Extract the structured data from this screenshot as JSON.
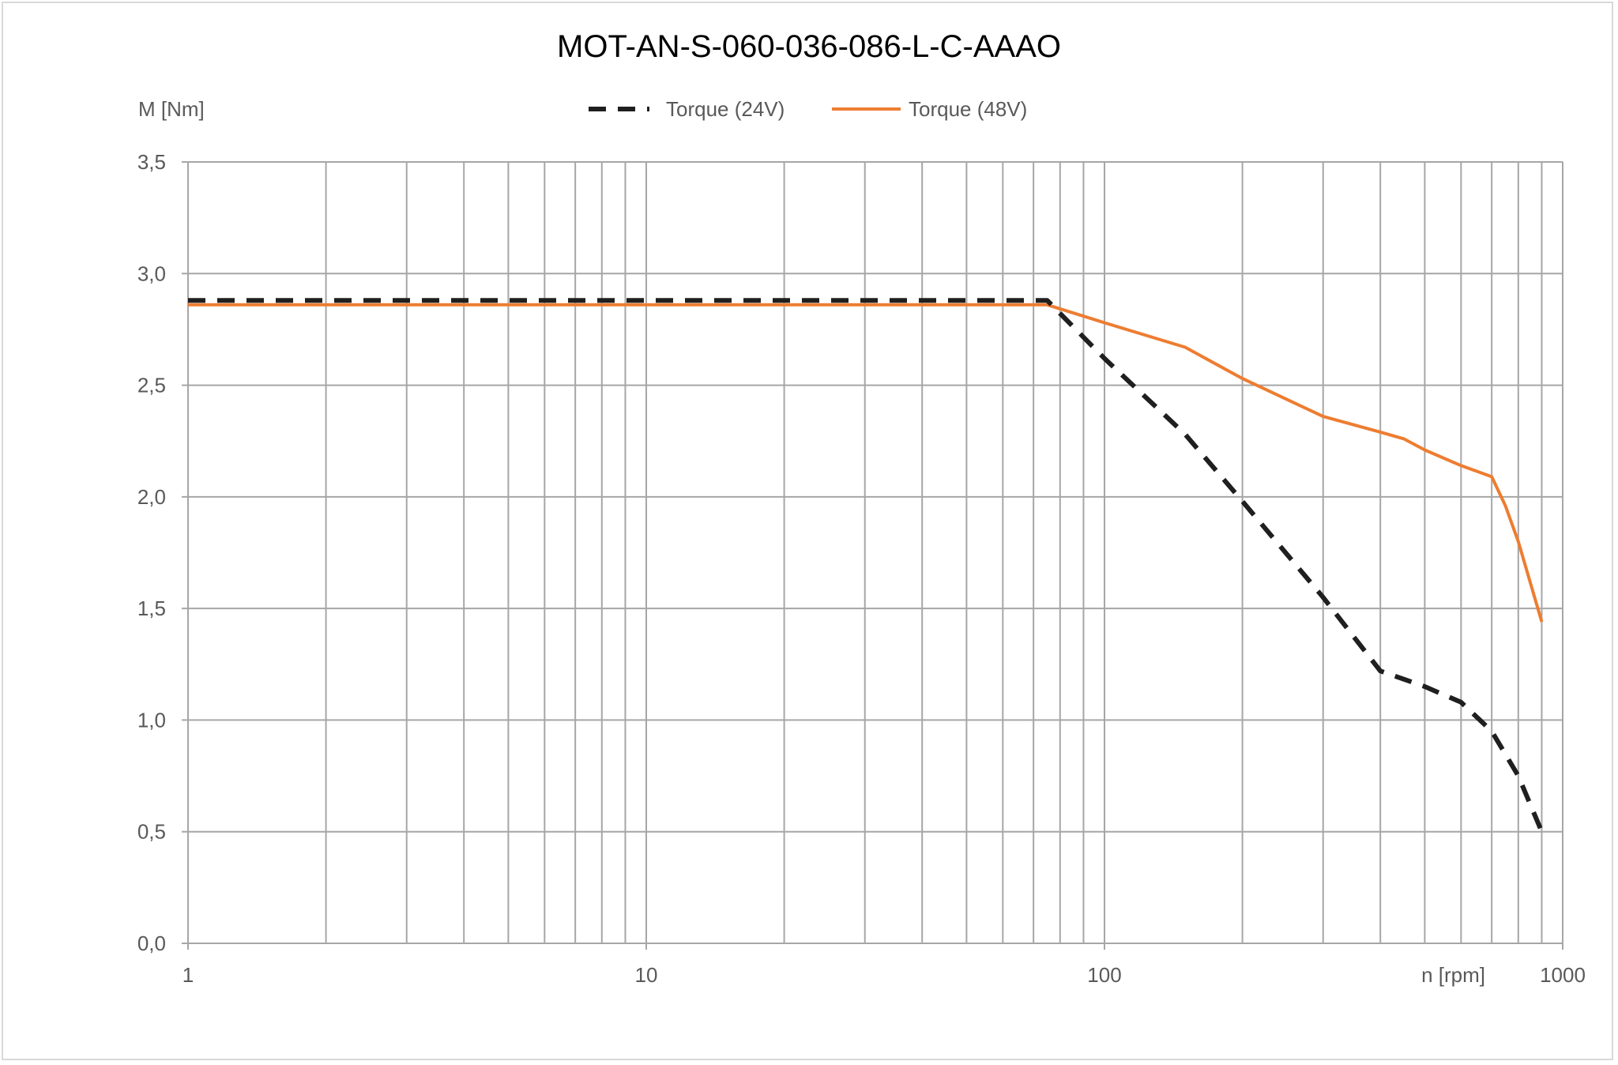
{
  "chart_data": {
    "type": "line",
    "title": "MOT-AN-S-060-036-086-L-C-AAAO",
    "xlabel": "n [rpm]",
    "ylabel": "M [Nm]",
    "xscale": "log",
    "xlim": [
      1,
      1000
    ],
    "ylim": [
      0,
      3.5
    ],
    "grid": true,
    "legend_position": "top-center",
    "x_tick_labels": [
      "1",
      "10",
      "100",
      "1000"
    ],
    "y_tick_labels": [
      "0,0",
      "0,5",
      "1,0",
      "1,5",
      "2,0",
      "2,5",
      "3,0",
      "3,5"
    ],
    "series": [
      {
        "name": "Torque (24V)",
        "color": "#1f1f1f",
        "style": "dashed",
        "x": [
          1,
          75,
          100,
          150,
          200,
          300,
          400,
          500,
          600,
          700,
          800,
          900
        ],
        "y": [
          2.88,
          2.88,
          2.62,
          2.28,
          1.98,
          1.55,
          1.22,
          1.15,
          1.08,
          0.95,
          0.75,
          0.5
        ]
      },
      {
        "name": "Torque (48V)",
        "color": "#ed7d31",
        "style": "solid",
        "x": [
          1,
          75,
          100,
          150,
          200,
          300,
          400,
          450,
          500,
          600,
          700,
          750,
          800,
          900
        ],
        "y": [
          2.86,
          2.86,
          2.78,
          2.67,
          2.53,
          2.36,
          2.29,
          2.26,
          2.21,
          2.14,
          2.09,
          1.96,
          1.8,
          1.44
        ]
      }
    ]
  }
}
